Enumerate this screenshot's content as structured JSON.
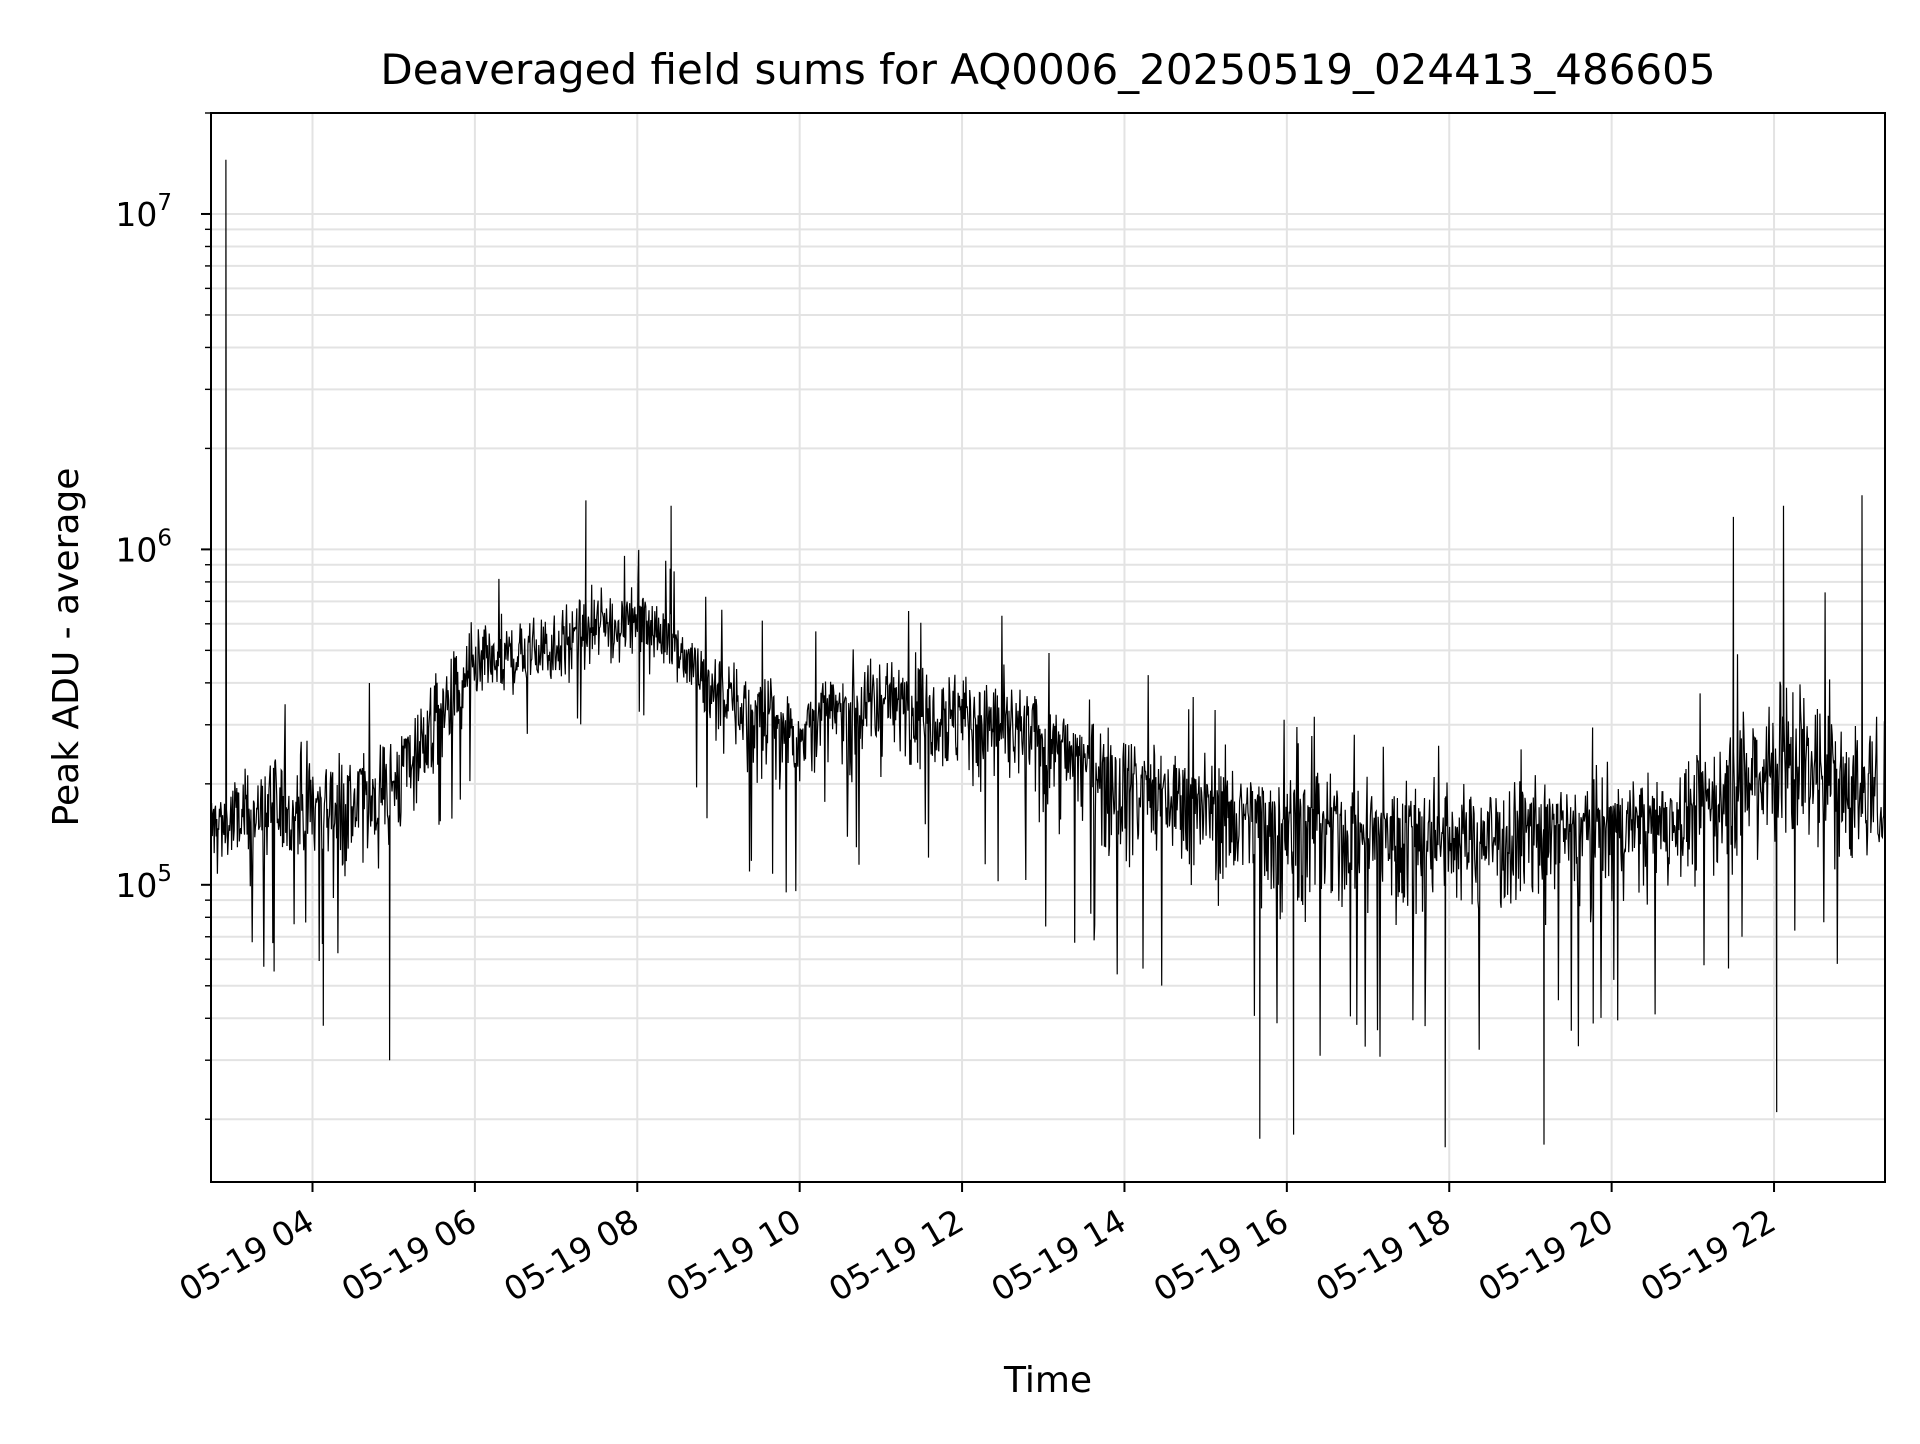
{
  "chart_data": {
    "type": "line",
    "title": "Deaveraged field sums for AQ0006_20250519_024413_486605",
    "xlabel": "Time",
    "ylabel": "Peak ADU - average",
    "yscale": "log",
    "ylim": [
      13000,
      20000000
    ],
    "xlim": [
      "2025-05-19 02:45",
      "2025-05-19 23:22"
    ],
    "grid": true,
    "line_color": "#000000",
    "x_ticks": [
      {
        "t": "2025-05-19 04:00",
        "label": "05-19 04"
      },
      {
        "t": "2025-05-19 06:00",
        "label": "05-19 06"
      },
      {
        "t": "2025-05-19 08:00",
        "label": "05-19 08"
      },
      {
        "t": "2025-05-19 10:00",
        "label": "05-19 10"
      },
      {
        "t": "2025-05-19 12:00",
        "label": "05-19 12"
      },
      {
        "t": "2025-05-19 14:00",
        "label": "05-19 14"
      },
      {
        "t": "2025-05-19 16:00",
        "label": "05-19 16"
      },
      {
        "t": "2025-05-19 18:00",
        "label": "05-19 18"
      },
      {
        "t": "2025-05-19 20:00",
        "label": "05-19 20"
      },
      {
        "t": "2025-05-19 22:00",
        "label": "05-19 22"
      }
    ],
    "y_ticks": [
      {
        "value": 100000,
        "base": "10",
        "exp": "5"
      },
      {
        "value": 1000000,
        "base": "10",
        "exp": "6"
      },
      {
        "value": 10000000,
        "base": "10",
        "exp": "7"
      }
    ],
    "series": [
      {
        "x": [
          "2025-05-19 02:45",
          "2025-05-19 03:00",
          "2025-05-19 03:30",
          "2025-05-19 04:00",
          "2025-05-19 04:30",
          "2025-05-19 05:00",
          "2025-05-19 05:30",
          "2025-05-19 06:00",
          "2025-05-19 06:30",
          "2025-05-19 07:00",
          "2025-05-19 07:30",
          "2025-05-19 08:00",
          "2025-05-19 08:30",
          "2025-05-19 09:00",
          "2025-05-19 09:30",
          "2025-05-19 10:00",
          "2025-05-19 10:30",
          "2025-05-19 11:00",
          "2025-05-19 11:30",
          "2025-05-19 12:00",
          "2025-05-19 12:30",
          "2025-05-19 13:00",
          "2025-05-19 13:30",
          "2025-05-19 14:00",
          "2025-05-19 14:30",
          "2025-05-19 15:00",
          "2025-05-19 15:30",
          "2025-05-19 16:00",
          "2025-05-19 16:30",
          "2025-05-19 17:00",
          "2025-05-19 17:30",
          "2025-05-19 18:00",
          "2025-05-19 18:30",
          "2025-05-19 19:00",
          "2025-05-19 19:30",
          "2025-05-19 20:00",
          "2025-05-19 20:30",
          "2025-05-19 21:00",
          "2025-05-19 21:30",
          "2025-05-19 22:00",
          "2025-05-19 22:30",
          "2025-05-19 23:00",
          "2025-05-19 23:22"
        ],
        "center": [
          150000,
          155000,
          165000,
          175000,
          170000,
          200000,
          300000,
          420000,
          480000,
          520000,
          580000,
          620000,
          520000,
          380000,
          320000,
          290000,
          330000,
          360000,
          350000,
          320000,
          300000,
          270000,
          240000,
          210000,
          190000,
          175000,
          165000,
          155000,
          150000,
          148000,
          147000,
          146000,
          145000,
          148000,
          150000,
          152000,
          158000,
          170000,
          190000,
          240000,
          230000,
          190000,
          180000
        ],
        "upper": [
          300000,
          320000,
          420000,
          480000,
          380000,
          450000,
          650000,
          900000,
          950000,
          1000000,
          1050000,
          1050000,
          900000,
          650000,
          600000,
          600000,
          650000,
          700000,
          680000,
          650000,
          620000,
          520000,
          480000,
          420000,
          400000,
          380000,
          340000,
          320000,
          300000,
          300000,
          300000,
          300000,
          300000,
          290000,
          290000,
          300000,
          320000,
          350000,
          600000,
          850000,
          800000,
          600000,
          550000
        ],
        "lower": [
          55000,
          60000,
          60000,
          65000,
          60000,
          80000,
          120000,
          230000,
          270000,
          280000,
          300000,
          330000,
          280000,
          140000,
          110000,
          100000,
          120000,
          130000,
          130000,
          110000,
          100000,
          85000,
          70000,
          55000,
          50000,
          40000,
          38000,
          35000,
          33000,
          33000,
          32000,
          32000,
          32000,
          33000,
          35000,
          40000,
          45000,
          50000,
          55000,
          60000,
          60000,
          60000,
          60000
        ]
      }
    ],
    "peaks": [
      {
        "t": "2025-05-19 02:56",
        "value": 14500000
      },
      {
        "t": "2025-05-19 07:22",
        "value": 1400000
      },
      {
        "t": "2025-05-19 08:25",
        "value": 1350000
      },
      {
        "t": "2025-05-19 21:30",
        "value": 1250000
      },
      {
        "t": "2025-05-19 22:07",
        "value": 1350000
      },
      {
        "t": "2025-05-19 23:05",
        "value": 1450000
      }
    ],
    "dips": [
      {
        "t": "2025-05-19 04:08",
        "value": 38000
      },
      {
        "t": "2025-05-19 04:57",
        "value": 30000
      },
      {
        "t": "2025-05-19 15:40",
        "value": 17500
      },
      {
        "t": "2025-05-19 16:05",
        "value": 18000
      },
      {
        "t": "2025-05-19 17:57",
        "value": 16500
      },
      {
        "t": "2025-05-19 19:10",
        "value": 16800
      },
      {
        "t": "2025-05-19 22:02",
        "value": 21000
      }
    ]
  }
}
